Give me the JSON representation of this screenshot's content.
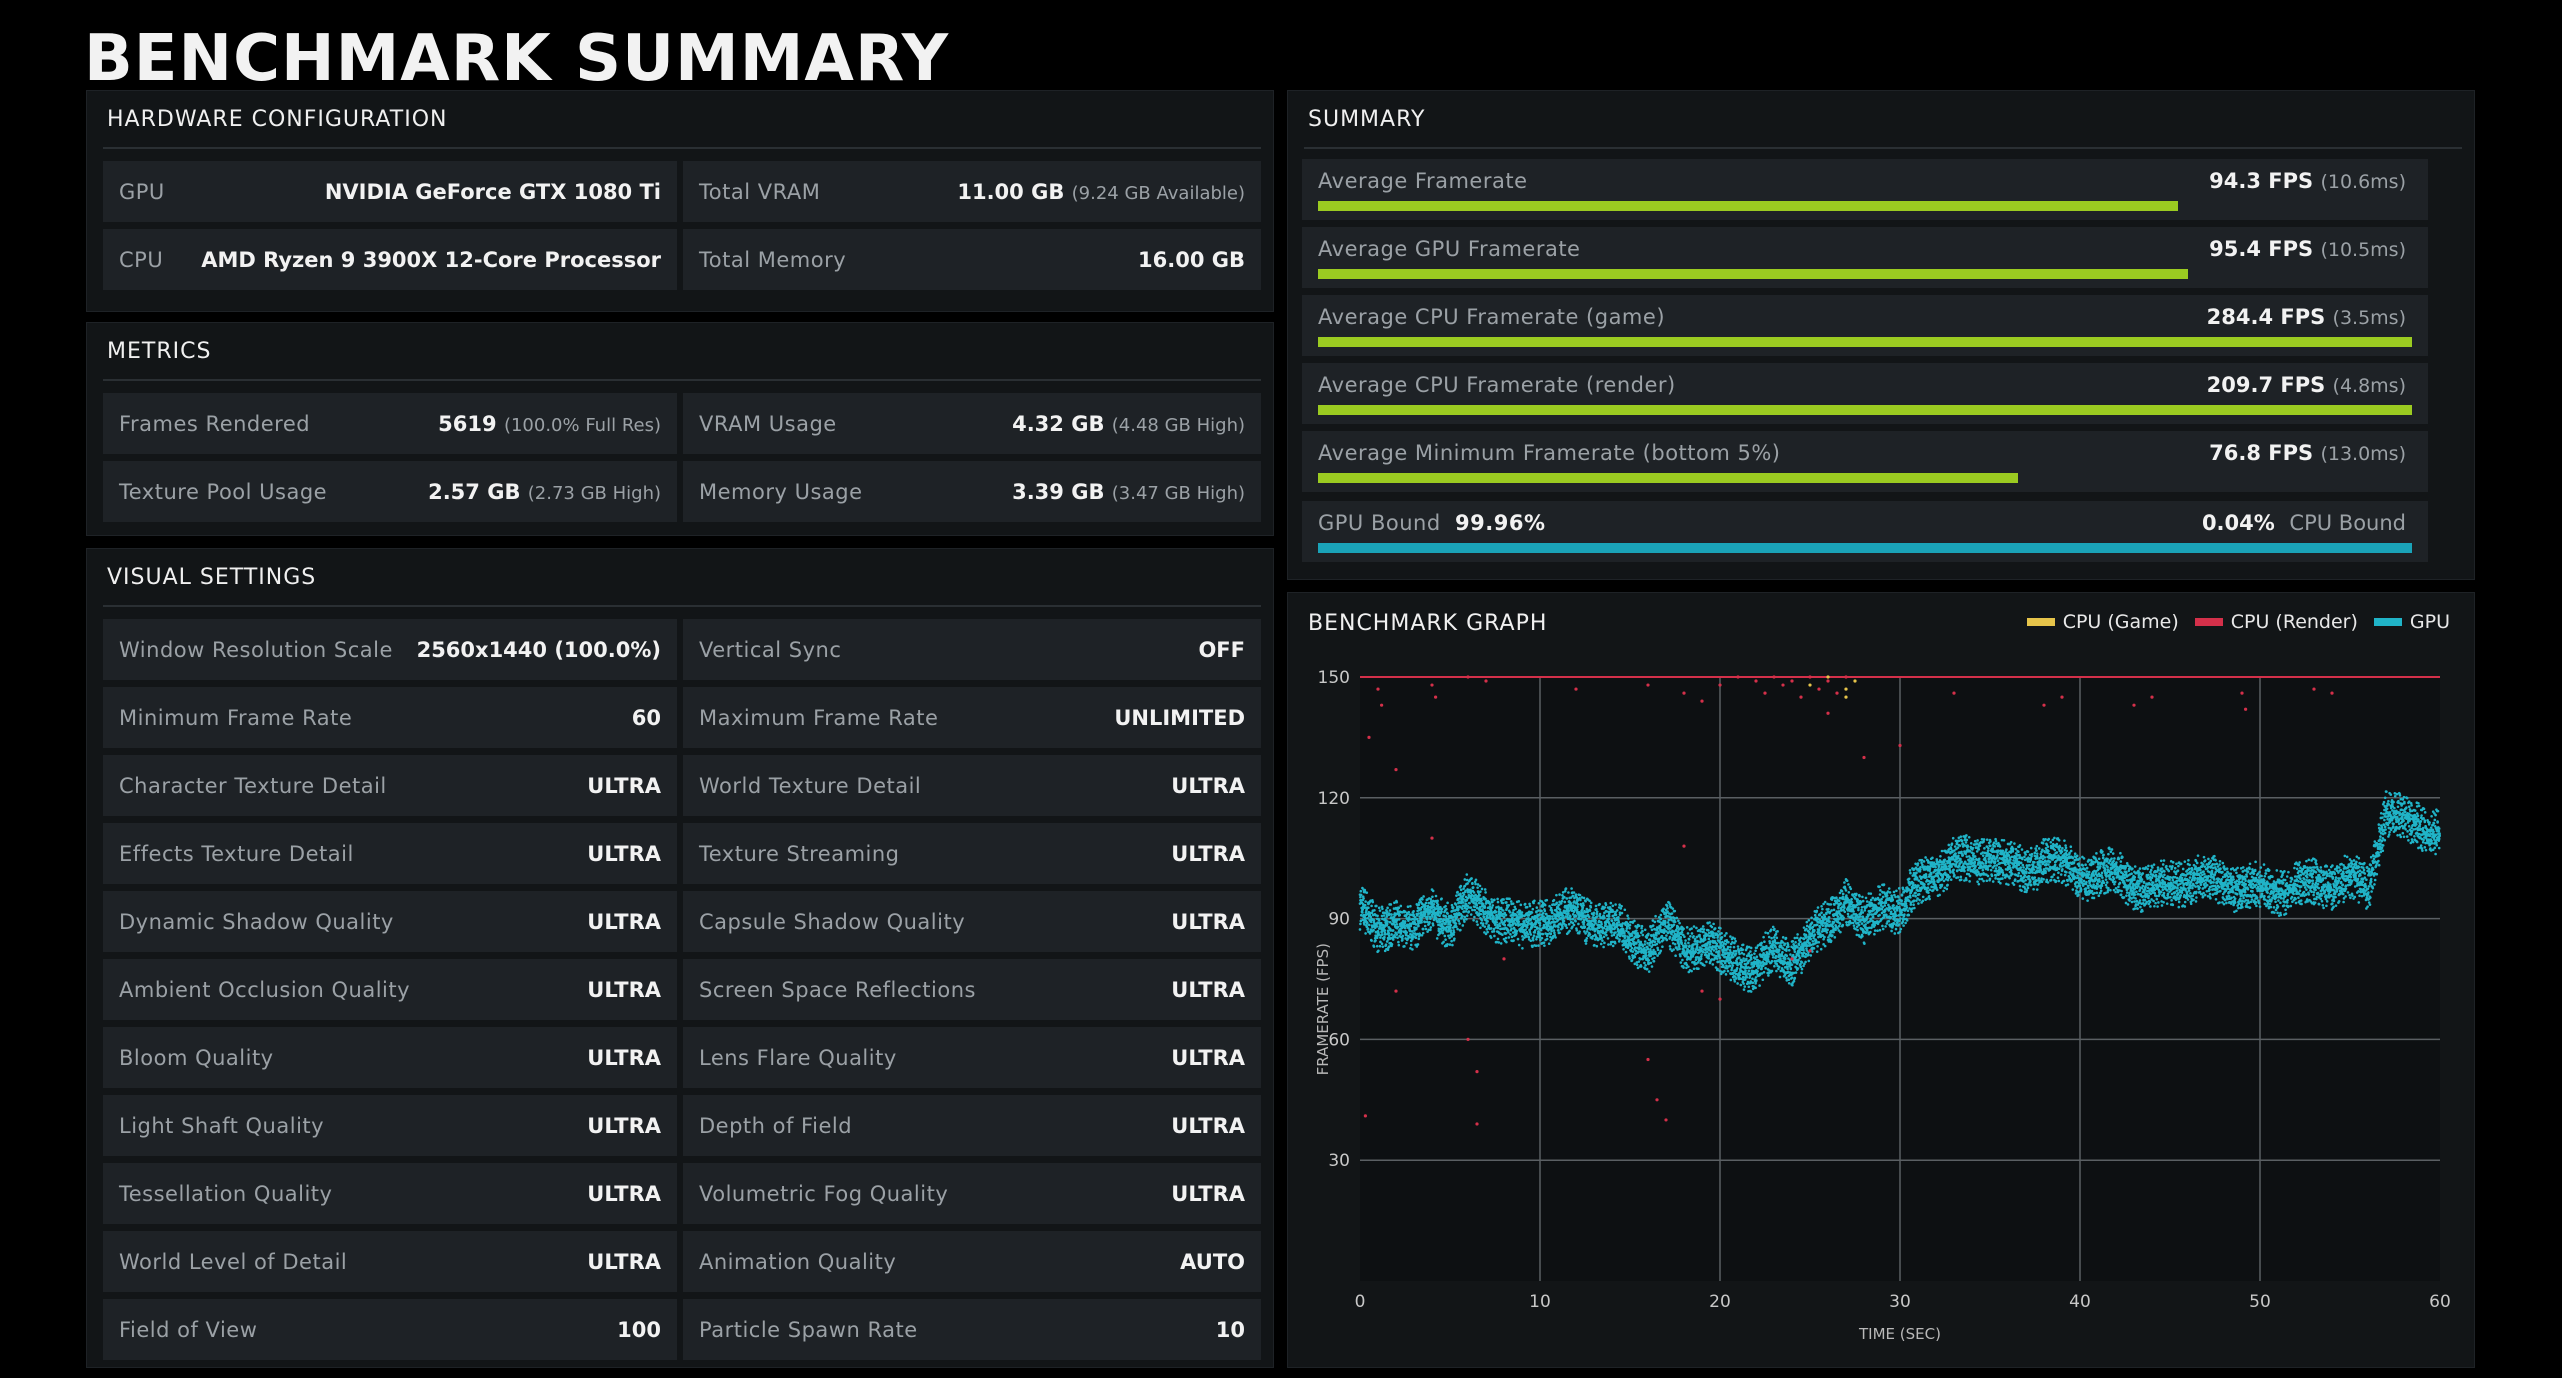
{
  "title": "BENCHMARK SUMMARY",
  "hardware": {
    "title": "HARDWARE CONFIGURATION",
    "rows": [
      {
        "label": "GPU",
        "value": "NVIDIA GeForce GTX 1080 Ti",
        "sub": ""
      },
      {
        "label": "Total VRAM",
        "value": "11.00 GB",
        "sub": "(9.24 GB Available)"
      },
      {
        "label": "CPU",
        "value": "AMD Ryzen 9 3900X 12-Core Processor",
        "sub": ""
      },
      {
        "label": "Total Memory",
        "value": "16.00 GB",
        "sub": ""
      }
    ]
  },
  "metrics": {
    "title": "METRICS",
    "rows": [
      {
        "label": "Frames Rendered",
        "value": "5619",
        "sub": "(100.0% Full Res)"
      },
      {
        "label": "VRAM Usage",
        "value": "4.32 GB",
        "sub": "(4.48 GB High)"
      },
      {
        "label": "Texture Pool Usage",
        "value": "2.57 GB",
        "sub": "(2.73 GB High)"
      },
      {
        "label": "Memory Usage",
        "value": "3.39 GB",
        "sub": "(3.47 GB High)"
      }
    ]
  },
  "visual": {
    "title": "VISUAL SETTINGS",
    "rows": [
      {
        "label": "Window Resolution Scale",
        "value": "2560x1440 (100.0%)"
      },
      {
        "label": "Vertical Sync",
        "value": "OFF"
      },
      {
        "label": "Minimum Frame Rate",
        "value": "60"
      },
      {
        "label": "Maximum Frame Rate",
        "value": "UNLIMITED"
      },
      {
        "label": "Character Texture Detail",
        "value": "ULTRA"
      },
      {
        "label": "World Texture Detail",
        "value": "ULTRA"
      },
      {
        "label": "Effects Texture Detail",
        "value": "ULTRA"
      },
      {
        "label": "Texture Streaming",
        "value": "ULTRA"
      },
      {
        "label": "Dynamic Shadow Quality",
        "value": "ULTRA"
      },
      {
        "label": "Capsule Shadow Quality",
        "value": "ULTRA"
      },
      {
        "label": "Ambient Occlusion Quality",
        "value": "ULTRA"
      },
      {
        "label": "Screen Space Reflections",
        "value": "ULTRA"
      },
      {
        "label": "Bloom Quality",
        "value": "ULTRA"
      },
      {
        "label": "Lens Flare Quality",
        "value": "ULTRA"
      },
      {
        "label": "Light Shaft Quality",
        "value": "ULTRA"
      },
      {
        "label": "Depth of Field",
        "value": "ULTRA"
      },
      {
        "label": "Tessellation Quality",
        "value": "ULTRA"
      },
      {
        "label": "Volumetric Fog Quality",
        "value": "ULTRA"
      },
      {
        "label": "World Level of Detail",
        "value": "ULTRA"
      },
      {
        "label": "Animation Quality",
        "value": "AUTO"
      },
      {
        "label": "Field of View",
        "value": "100"
      },
      {
        "label": "Particle Spawn Rate",
        "value": "10"
      }
    ]
  },
  "summary": {
    "title": "SUMMARY",
    "bar_max_fps": 284.4,
    "rows": [
      {
        "label": "Average Framerate",
        "value": "94.3 FPS",
        "sub": "(10.6ms)",
        "fill": 0.786
      },
      {
        "label": "Average GPU Framerate",
        "value": "95.4 FPS",
        "sub": "(10.5ms)",
        "fill": 0.795
      },
      {
        "label": "Average CPU Framerate (game)",
        "value": "284.4 FPS",
        "sub": "(3.5ms)",
        "fill": 1.0
      },
      {
        "label": "Average CPU Framerate (render)",
        "value": "209.7 FPS",
        "sub": "(4.8ms)",
        "fill": 1.0
      },
      {
        "label": "Average Minimum Framerate (bottom 5%)",
        "value": "76.8 FPS",
        "sub": "(13.0ms)",
        "fill": 0.64
      }
    ],
    "bound": {
      "gpu_label": "GPU Bound",
      "gpu_value": "99.96%",
      "cpu_label": "CPU Bound",
      "cpu_value": "0.04%",
      "gpu_fraction": 0.9996,
      "color": "#1aa3b8"
    }
  },
  "graph": {
    "title": "BENCHMARK GRAPH",
    "legend": [
      {
        "name": "CPU (Game)",
        "color": "#e6c44a"
      },
      {
        "name": "CPU (Render)",
        "color": "#d4304a"
      },
      {
        "name": "GPU",
        "color": "#20b4c8"
      }
    ],
    "chart_data": {
      "type": "scatter",
      "title": "BENCHMARK GRAPH",
      "xlabel": "TIME (SEC)",
      "ylabel": "FRAMERATE (FPS)",
      "xlim": [
        0,
        60
      ],
      "ylim": [
        0,
        150
      ],
      "xticks": [
        0,
        10,
        20,
        30,
        40,
        50,
        60
      ],
      "yticks": [
        30,
        60,
        90,
        120,
        150
      ],
      "grid": true,
      "legend_position": "top-right",
      "series": [
        {
          "name": "GPU",
          "color": "#20b4c8",
          "trend": [
            [
              0,
              93
            ],
            [
              1,
              86
            ],
            [
              2,
              90
            ],
            [
              3,
              87
            ],
            [
              4,
              92
            ],
            [
              5,
              89
            ],
            [
              6,
              95
            ],
            [
              7,
              92
            ],
            [
              8,
              90
            ],
            [
              9,
              87
            ],
            [
              10,
              90
            ],
            [
              12,
              91
            ],
            [
              14,
              88
            ],
            [
              15,
              85
            ],
            [
              16,
              83
            ],
            [
              17,
              88
            ],
            [
              18,
              83
            ],
            [
              19,
              84
            ],
            [
              20,
              81
            ],
            [
              21,
              80
            ],
            [
              22,
              77
            ],
            [
              23,
              82
            ],
            [
              24,
              80
            ],
            [
              25,
              84
            ],
            [
              26,
              89
            ],
            [
              27,
              95
            ],
            [
              28,
              88
            ],
            [
              29,
              94
            ],
            [
              30,
              92
            ],
            [
              31,
              98
            ],
            [
              32,
              102
            ],
            [
              33,
              104
            ],
            [
              34,
              104
            ],
            [
              35,
              106
            ],
            [
              36,
              103
            ],
            [
              37,
              102
            ],
            [
              38,
              105
            ],
            [
              40,
              101
            ],
            [
              42,
              101
            ],
            [
              44,
              97
            ],
            [
              46,
              100
            ],
            [
              48,
              99
            ],
            [
              50,
              97
            ],
            [
              52,
              98
            ],
            [
              54,
              99
            ],
            [
              55,
              100
            ],
            [
              56,
              97
            ],
            [
              57,
              117
            ],
            [
              58,
              114
            ],
            [
              59,
              113
            ],
            [
              60,
              112
            ]
          ]
        },
        {
          "name": "CPU (Render)",
          "color": "#d4304a",
          "points": [
            [
              1,
              147
            ],
            [
              1.2,
              143
            ],
            [
              4,
              148
            ],
            [
              4.2,
              145
            ],
            [
              6,
              150
            ],
            [
              7,
              149
            ],
            [
              12,
              147
            ],
            [
              16,
              148
            ],
            [
              18,
              146
            ],
            [
              19,
              144
            ],
            [
              20,
              148
            ],
            [
              21,
              150
            ],
            [
              22,
              149
            ],
            [
              22.5,
              146
            ],
            [
              23,
              150
            ],
            [
              23.5,
              148
            ],
            [
              24,
              149
            ],
            [
              24.5,
              145
            ],
            [
              25,
              150
            ],
            [
              25.5,
              147
            ],
            [
              26,
              149
            ],
            [
              26.5,
              146
            ],
            [
              27,
              150
            ],
            [
              33,
              146
            ],
            [
              38,
              143
            ],
            [
              39,
              145
            ],
            [
              43,
              143
            ],
            [
              44,
              145
            ],
            [
              49,
              146
            ],
            [
              49.2,
              142
            ],
            [
              53,
              147
            ],
            [
              54,
              146
            ],
            [
              0.5,
              135
            ],
            [
              2,
              127
            ],
            [
              4,
              110
            ],
            [
              18,
              108
            ],
            [
              26,
              141
            ],
            [
              28,
              130
            ],
            [
              30,
              133
            ],
            [
              19,
              72
            ],
            [
              20,
              70
            ],
            [
              2,
              72
            ],
            [
              6,
              60
            ],
            [
              6.5,
              52
            ],
            [
              8,
              80
            ],
            [
              16,
              55
            ],
            [
              16.5,
              45
            ],
            [
              17,
              40
            ],
            [
              0.3,
              41
            ],
            [
              6.5,
              39
            ],
            [
              24,
              80
            ],
            [
              25,
              82
            ]
          ]
        },
        {
          "name": "CPU (Game)",
          "color": "#e6c44a",
          "points": [
            [
              26,
              150
            ],
            [
              27,
              147
            ],
            [
              27.5,
              149
            ],
            [
              25,
              148
            ],
            [
              27,
              145
            ]
          ]
        }
      ]
    }
  }
}
